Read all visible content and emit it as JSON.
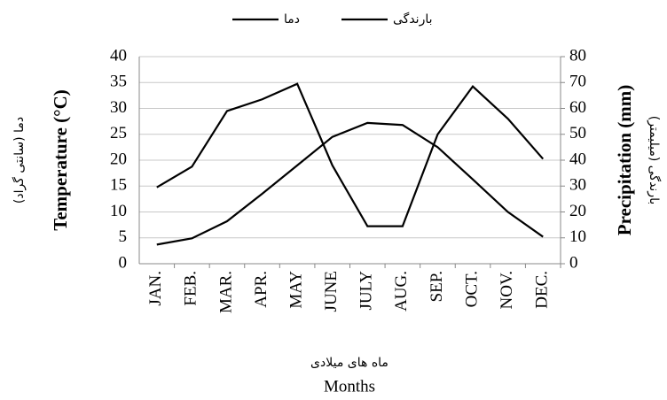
{
  "chart_data": {
    "type": "line",
    "categories": [
      "JAN.",
      "FEB.",
      "MAR.",
      "APR.",
      "MAY",
      "JUNE",
      "JULY",
      "AUG.",
      "SEP.",
      "OCT.",
      "NOV.",
      "DEC."
    ],
    "series": [
      {
        "name": "دما",
        "color": "#000000",
        "values": [
          3.7,
          4.9,
          8.2,
          13.5,
          19,
          24.5,
          27.2,
          26.8,
          22.5,
          16.3,
          10,
          5.2
        ]
      },
      {
        "name": "بارندگی",
        "color": "#000000",
        "axis": "y2",
        "values": [
          29.5,
          37.5,
          59,
          63.5,
          69.5,
          38,
          14.5,
          14.5,
          50,
          68.5,
          56,
          40.5
        ]
      }
    ],
    "ylim": [
      0,
      40
    ],
    "yticks": [
      0,
      5,
      10,
      15,
      20,
      25,
      30,
      35,
      40
    ],
    "y2lim": [
      0,
      80
    ],
    "y2ticks": [
      0,
      10,
      20,
      30,
      40,
      50,
      60,
      70,
      80
    ],
    "ylabel": "Temperature (°C)",
    "ylabel_fa": "دما (سانتی گراد)",
    "y2label": "Precipitation (mm)",
    "y2label_fa": "بارندگی (میلیمتر)",
    "xlabel_fa": "ماه های میلادی",
    "xlabel": "Months",
    "grid": true
  }
}
